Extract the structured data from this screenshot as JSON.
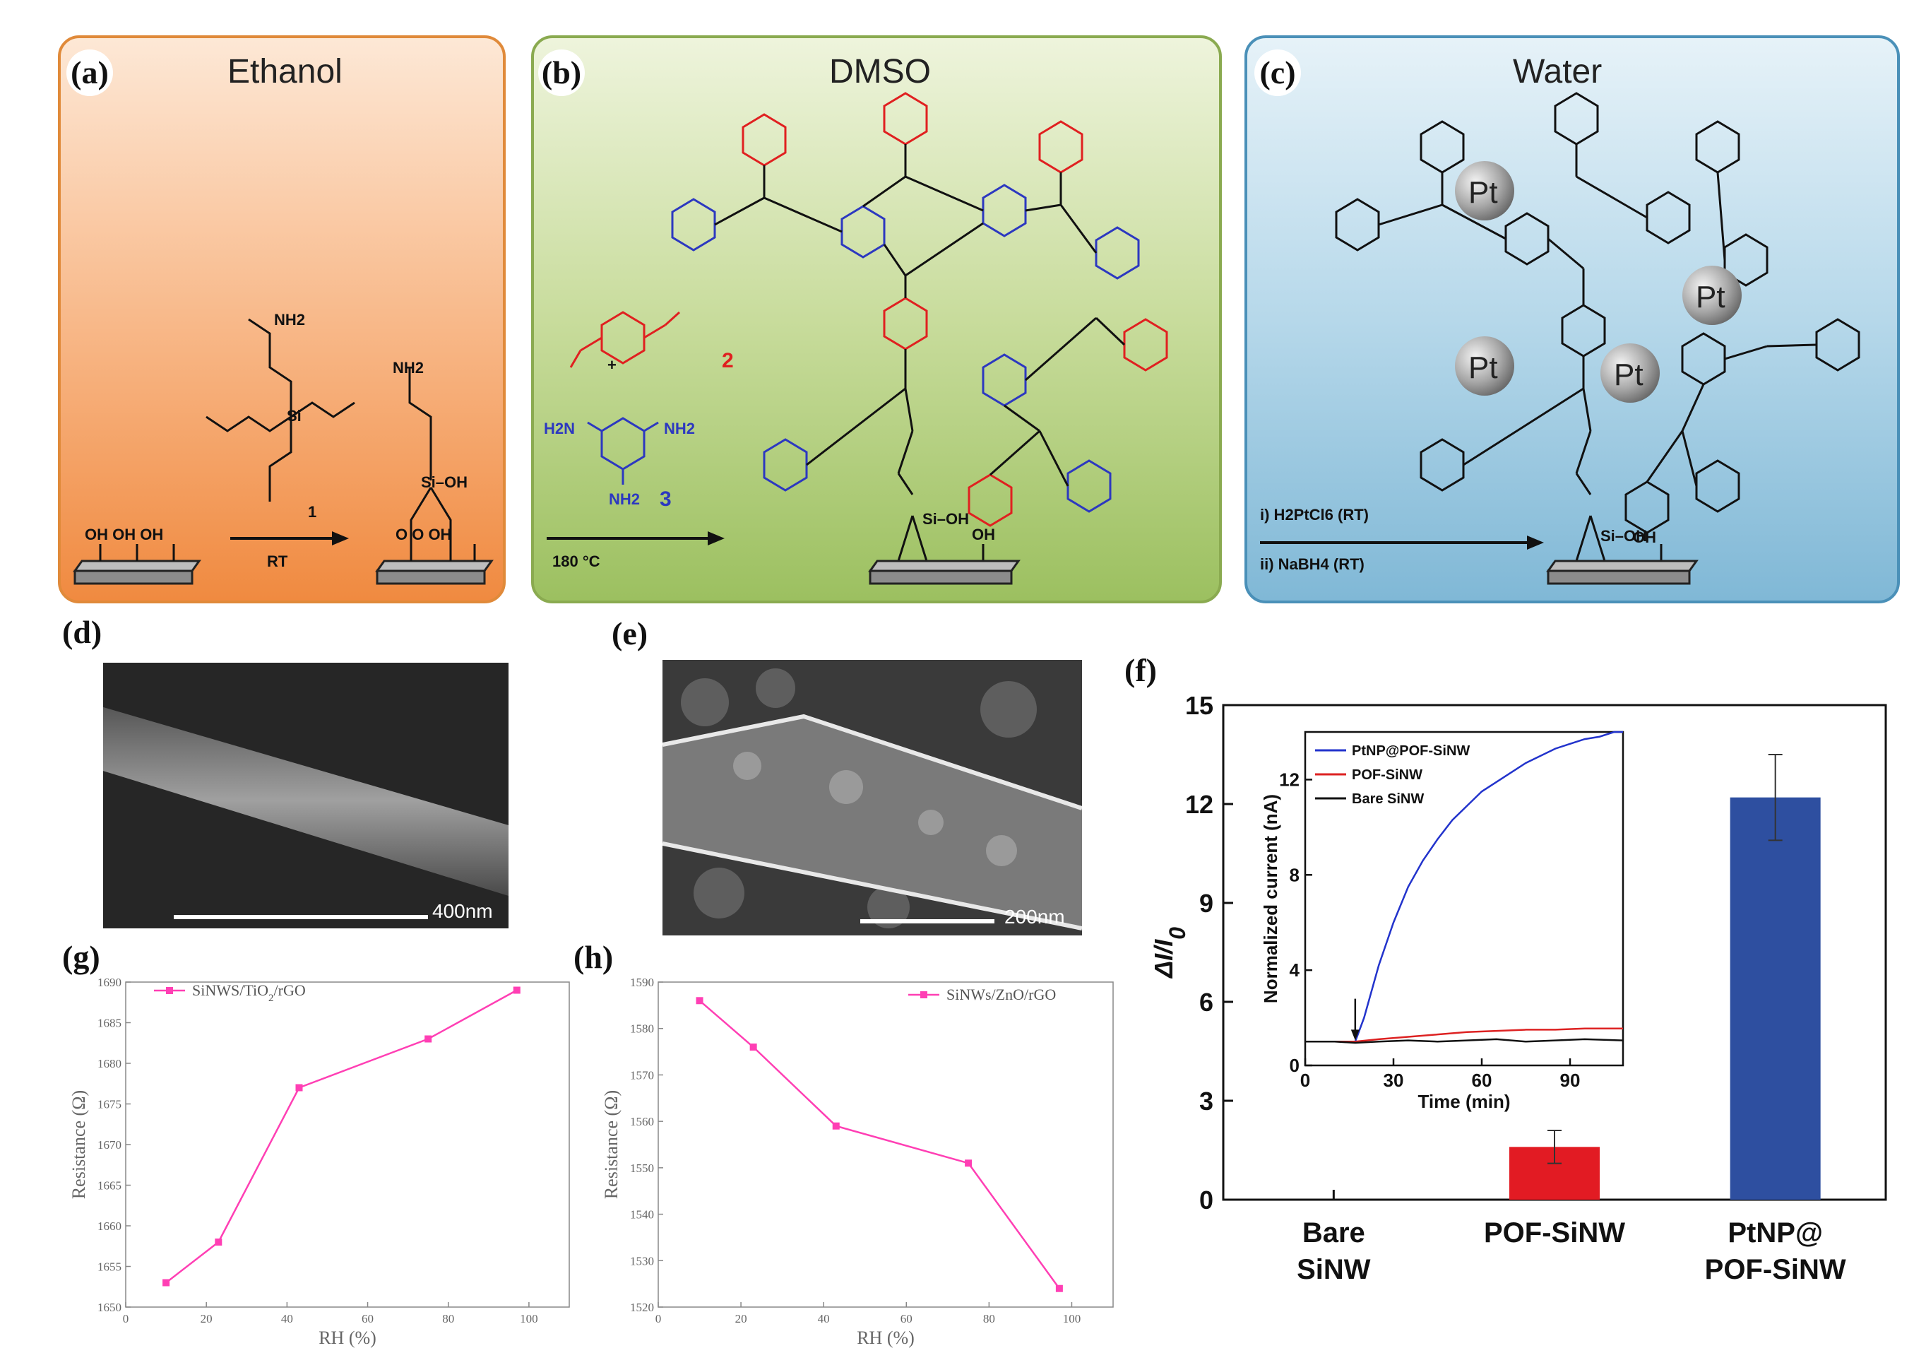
{
  "panels": {
    "a": {
      "label": "(a)",
      "solvent": "Ethanol",
      "reagent_num": "1",
      "reagent_nh2": "NH2",
      "product_nh2": "NH2",
      "product_sioh": "Si–OH",
      "arrow_label": "RT",
      "surface_oh": "OH  OH  OH",
      "reagent_si": "Si",
      "product_o": "O   O   OH"
    },
    "b": {
      "label": "(b)",
      "solvent": "DMSO",
      "reagent2_num": "2",
      "reagent3_num": "3",
      "plus": "+",
      "reagent3_h2n_left": "H2N",
      "reagent3_nh2_right": "NH2",
      "reagent3_nh2_bottom": "NH2",
      "arrow_label": "180 °C",
      "sioh": "Si–OH",
      "oh": "OH"
    },
    "c": {
      "label": "(c)",
      "solvent": "Water",
      "step1": "i) H2PtCl6 (RT)",
      "step2": "ii) NaBH4 (RT)",
      "pt": "Pt",
      "sioh": "Si–OH",
      "oh": "OH"
    }
  },
  "sem_d": {
    "label": "(d)",
    "scale": "400nm"
  },
  "sem_e": {
    "label": "(e)",
    "scale": "200nm"
  },
  "chart_g": {
    "label": "(g)"
  },
  "chart_h": {
    "label": "(h)"
  },
  "chart_f": {
    "label": "(f)"
  },
  "chart_data": [
    {
      "id": "g",
      "type": "line",
      "title": "",
      "legend": "SiNWS/TiO2/rGO",
      "legend_position": "top-left",
      "xlabel": "RH (%)",
      "ylabel": "Resistance (Ω)",
      "x": [
        10,
        23,
        43,
        75,
        97
      ],
      "y": [
        1653,
        1658,
        1677,
        1683,
        1689
      ],
      "xlim": [
        0,
        110
      ],
      "ylim": [
        1650,
        1690
      ],
      "xticks": [
        0,
        20,
        40,
        60,
        80,
        100
      ],
      "yticks": [
        1650,
        1655,
        1660,
        1665,
        1670,
        1675,
        1680,
        1685,
        1690
      ],
      "color": "#ff3fb4"
    },
    {
      "id": "h",
      "type": "line",
      "title": "",
      "legend": "SiNWs/ZnO/rGO",
      "legend_position": "top-right",
      "xlabel": "RH (%)",
      "ylabel": "Resistance (Ω)",
      "x": [
        10,
        23,
        43,
        75,
        97
      ],
      "y": [
        1586,
        1576,
        1559,
        1551,
        1524
      ],
      "xlim": [
        0,
        110
      ],
      "ylim": [
        1520,
        1590
      ],
      "xticks": [
        0,
        20,
        40,
        60,
        80,
        100
      ],
      "yticks": [
        1520,
        1530,
        1540,
        1550,
        1560,
        1570,
        1580,
        1590
      ],
      "color": "#ff3fb4"
    },
    {
      "id": "f",
      "type": "bar",
      "title": "",
      "ylabel": "ΔI/I0",
      "categories": [
        [
          "Bare",
          "SiNW"
        ],
        [
          "POF-SiNW"
        ],
        [
          "PtNP@",
          "POF-SiNW"
        ]
      ],
      "values": [
        0,
        1.6,
        12.2
      ],
      "errors": [
        0,
        0.5,
        1.3
      ],
      "colors": [
        "#e02020",
        "#e21b23",
        "#2e4fa0"
      ],
      "ylim": [
        0,
        15
      ],
      "yticks": [
        0,
        3,
        6,
        9,
        12,
        15
      ]
    },
    {
      "id": "f-inset",
      "type": "line",
      "title": "",
      "xlabel": "Time (min)",
      "ylabel": "Normalized current (nA)",
      "xlim": [
        0,
        108
      ],
      "ylim": [
        0,
        14
      ],
      "xticks": [
        0,
        30,
        60,
        90
      ],
      "yticks": [
        0,
        4,
        8,
        12
      ],
      "arrow_x": 17,
      "series": [
        {
          "name": "PtNP@POF-SiNW",
          "color": "#2233cc",
          "x": [
            0,
            5,
            10,
            15,
            17,
            20,
            25,
            30,
            35,
            40,
            45,
            50,
            55,
            60,
            65,
            70,
            75,
            80,
            85,
            90,
            95,
            100,
            105,
            108
          ],
          "y": [
            1.0,
            1.0,
            1.0,
            1.0,
            1.0,
            2.0,
            4.2,
            6.0,
            7.5,
            8.6,
            9.5,
            10.3,
            10.9,
            11.5,
            11.9,
            12.3,
            12.7,
            13.0,
            13.3,
            13.5,
            13.7,
            13.8,
            14.0,
            14.0
          ]
        },
        {
          "name": "POF-SiNW",
          "color": "#dd2222",
          "x": [
            0,
            10,
            17,
            25,
            35,
            45,
            55,
            65,
            75,
            85,
            95,
            108
          ],
          "y": [
            1.0,
            1.0,
            1.0,
            1.1,
            1.2,
            1.3,
            1.4,
            1.45,
            1.5,
            1.5,
            1.55,
            1.55
          ]
        },
        {
          "name": "Bare SiNW",
          "color": "#111111",
          "x": [
            0,
            10,
            17,
            25,
            35,
            45,
            55,
            65,
            75,
            85,
            95,
            108
          ],
          "y": [
            1.0,
            1.0,
            0.95,
            1.0,
            1.05,
            1.0,
            1.05,
            1.1,
            1.0,
            1.05,
            1.1,
            1.05
          ]
        }
      ]
    }
  ]
}
